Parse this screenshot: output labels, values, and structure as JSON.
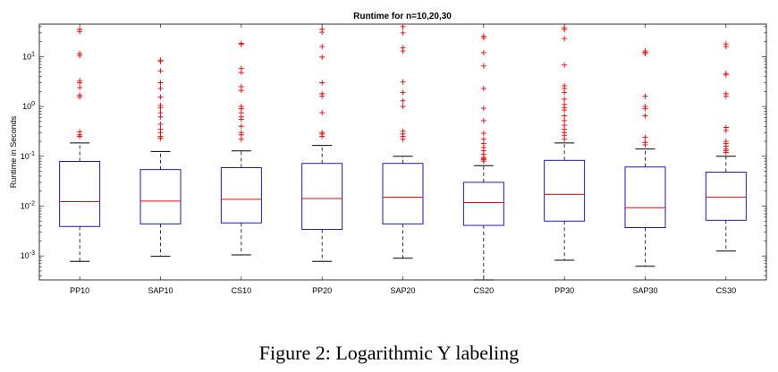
{
  "chart_data": {
    "type": "boxplot",
    "title": "Runtime for n=10,20,30",
    "ylabel": "Runtime in Seconds",
    "xlabel": "",
    "yscale": "log",
    "ylim": [
      0.00033,
      45
    ],
    "ytick_labels": [
      {
        "base": "10",
        "exp": "1",
        "value": 10
      },
      {
        "base": "10",
        "exp": "0",
        "value": 1
      },
      {
        "base": "10",
        "exp": "-1",
        "value": 0.1
      },
      {
        "base": "10",
        "exp": "-2",
        "value": 0.01
      },
      {
        "base": "10",
        "exp": "-3",
        "value": 0.001
      }
    ],
    "categories": [
      "PP10",
      "SAP10",
      "CS10",
      "PP20",
      "SAP20",
      "CS20",
      "PP30",
      "SAP30",
      "CS30"
    ],
    "boxes": [
      {
        "name": "PP10",
        "whisker_low": 0.00078,
        "q1": 0.0039,
        "median": 0.0123,
        "q3": 0.079,
        "whisker_high": 0.185,
        "outliers": [
          36,
          32,
          11.5,
          10.5,
          3.3,
          3.0,
          2.4,
          1.7,
          1.55,
          0.31,
          0.27,
          0.25
        ]
      },
      {
        "name": "SAP10",
        "whisker_low": 0.00098,
        "q1": 0.0044,
        "median": 0.0126,
        "q3": 0.054,
        "whisker_high": 0.125,
        "outliers": [
          8.5,
          8.0,
          5.2,
          3.0,
          2.3,
          1.55,
          1.05,
          0.95,
          0.75,
          0.62,
          0.44,
          0.35,
          0.3,
          0.25,
          0.23
        ]
      },
      {
        "name": "CS10",
        "whisker_low": 0.00105,
        "q1": 0.0046,
        "median": 0.0137,
        "q3": 0.059,
        "whisker_high": 0.128,
        "outliers": [
          18.5,
          17.5,
          5.8,
          4.8,
          2.5,
          2.1,
          1.0,
          0.9,
          0.75,
          0.62,
          0.55,
          0.4,
          0.3,
          0.27,
          0.22
        ]
      },
      {
        "name": "PP20",
        "whisker_low": 0.00078,
        "q1": 0.0034,
        "median": 0.0142,
        "q3": 0.072,
        "whisker_high": 0.165,
        "outliers": [
          36,
          31,
          16,
          9.8,
          3.0,
          1.8,
          1.6,
          0.75,
          0.3,
          0.28,
          0.25
        ]
      },
      {
        "name": "SAP20",
        "whisker_low": 0.0009,
        "q1": 0.0044,
        "median": 0.0151,
        "q3": 0.072,
        "whisker_high": 0.1,
        "outliers": [
          40,
          30,
          15,
          13,
          3.1,
          1.9,
          1.3,
          1.0,
          0.32,
          0.28,
          0.25,
          0.22
        ]
      },
      {
        "name": "CS20",
        "whisker_low": 0.00033,
        "q1": 0.0041,
        "median": 0.0118,
        "q3": 0.03,
        "whisker_high": 0.065,
        "outliers": [
          26,
          24,
          12,
          6.5,
          2.3,
          0.92,
          0.52,
          0.29,
          0.22,
          0.18,
          0.15,
          0.13,
          0.11,
          0.095,
          0.09,
          0.085,
          0.08
        ]
      },
      {
        "name": "PP30",
        "whisker_low": 0.00082,
        "q1": 0.005,
        "median": 0.0172,
        "q3": 0.083,
        "whisker_high": 0.185,
        "outliers": [
          38,
          35,
          23,
          6.8,
          2.6,
          2.3,
          1.9,
          1.4,
          1.1,
          0.95,
          0.85,
          0.65,
          0.52,
          0.42,
          0.35,
          0.3,
          0.26,
          0.22
        ]
      },
      {
        "name": "SAP30",
        "whisker_low": 0.00062,
        "q1": 0.0037,
        "median": 0.0093,
        "q3": 0.061,
        "whisker_high": 0.14,
        "outliers": [
          13,
          12.2,
          11.5,
          1.6,
          1.0,
          0.9,
          0.65,
          0.24,
          0.19,
          0.17
        ]
      },
      {
        "name": "CS30",
        "whisker_low": 0.00125,
        "q1": 0.0052,
        "median": 0.0152,
        "q3": 0.048,
        "whisker_high": 0.1,
        "outliers": [
          18,
          16,
          4.6,
          4.3,
          1.8,
          1.6,
          0.38,
          0.33,
          0.2,
          0.18,
          0.16,
          0.14,
          0.13,
          0.12
        ]
      }
    ],
    "colors": {
      "box": "#0000cc",
      "median": "#ff0000",
      "outlier": "#ff0000",
      "whisker": "#000000"
    }
  },
  "caption": "Figure 2:  Logarithmic Y labeling"
}
